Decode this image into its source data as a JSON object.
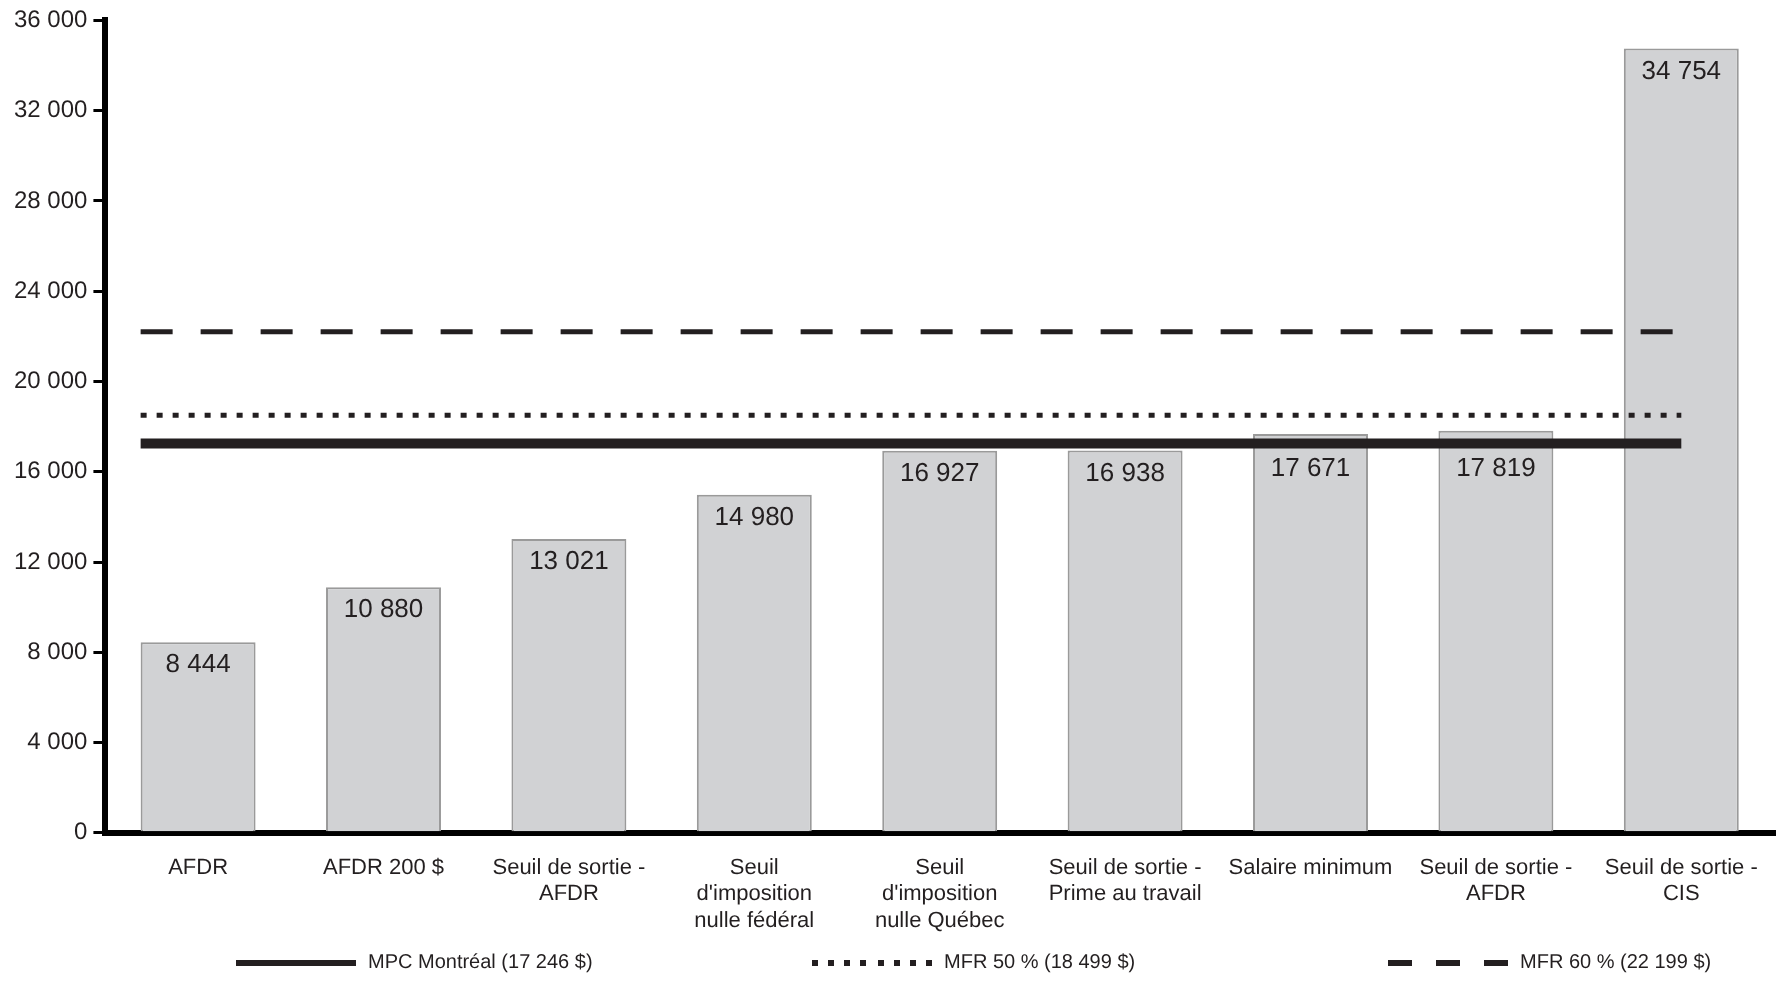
{
  "chart_data": {
    "type": "bar",
    "categories": [
      "AFDR",
      "AFDR 200 $",
      "Seuil de sortie - AFDR",
      "Seuil d'imposition nulle fédéral",
      "Seuil d'imposition nulle Québec",
      "Seuil de sortie - Prime au travail",
      "Salaire minimum",
      "Seuil de sortie - AFDR",
      "Seuil de sortie - CIS"
    ],
    "values": [
      8444,
      10880,
      13021,
      14980,
      16927,
      16938,
      17671,
      17819,
      34754
    ],
    "value_labels": [
      "8 444",
      "10 880",
      "13 021",
      "14 980",
      "16 927",
      "16 938",
      "17 671",
      "17 819",
      "34 754"
    ],
    "color": "#d1d2d4",
    "ylim": [
      0,
      36000
    ],
    "yticks": [
      {
        "value": 0,
        "label": "0"
      },
      {
        "value": 4000,
        "label": "4 000"
      },
      {
        "value": 8000,
        "label": "8 000"
      },
      {
        "value": 12000,
        "label": "12 000"
      },
      {
        "value": 16000,
        "label": "16 000"
      },
      {
        "value": 20000,
        "label": "20 000"
      },
      {
        "value": 24000,
        "label": "24 000"
      },
      {
        "value": 28000,
        "label": "28 000"
      },
      {
        "value": 32000,
        "label": "32 000"
      },
      {
        "value": 36000,
        "label": "36 000"
      }
    ],
    "ref_lines": [
      {
        "axis": "y",
        "value": 17246,
        "label": "MPC Montréal (17 246 $)",
        "color": "#231f20",
        "line_style": "solid"
      },
      {
        "axis": "y",
        "value": 18499,
        "label": "MFR 50 % (18 499 $)",
        "color": "#231f20",
        "line_style": "dotted"
      },
      {
        "axis": "y",
        "value": 22199,
        "label": "MFR 60 % (22 199 $)",
        "color": "#231f20",
        "line_style": "dashed"
      }
    ],
    "grid": false,
    "legend": "bottom"
  }
}
